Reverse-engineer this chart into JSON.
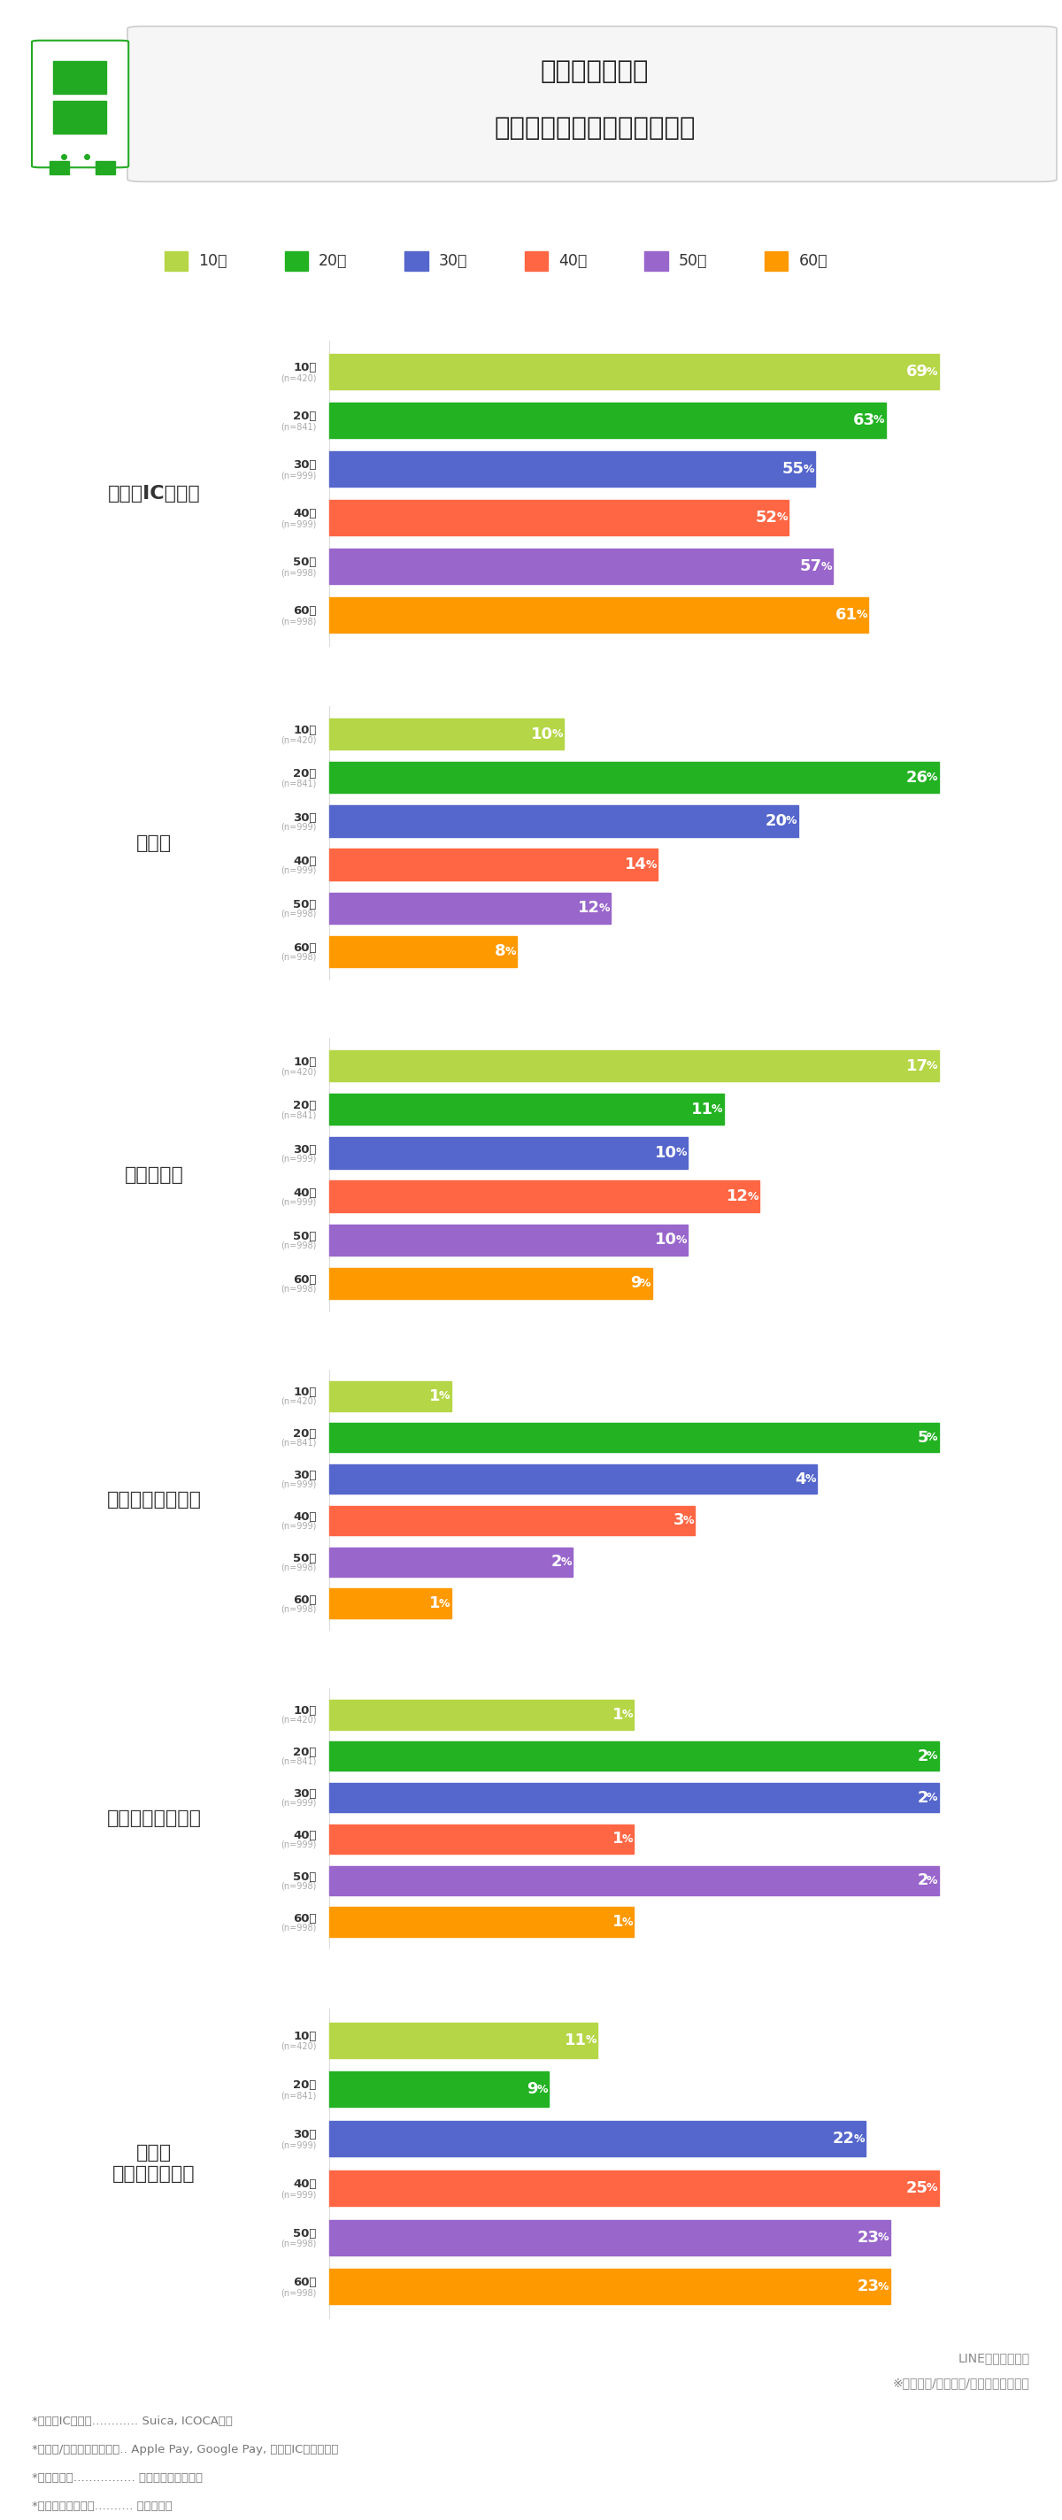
{
  "title_line1": "電車に乗る時、",
  "title_line2": "改札での運賃支払い方法は？",
  "age_labels": [
    "10代",
    "20代",
    "30代",
    "40代",
    "50代",
    "60代"
  ],
  "age_n": [
    "(n=420)",
    "(n=841)",
    "(n=999)",
    "(n=999)",
    "(n=998)",
    "(n=998)"
  ],
  "colors": [
    "#b5d646",
    "#22b222",
    "#5566cc",
    "#ff6644",
    "#9966cc",
    "#ff9900"
  ],
  "categories": [
    {
      "name": "交通系ICカード",
      "values": [
        69,
        63,
        55,
        52,
        57,
        61
      ],
      "bg": "#ddeef8",
      "shaded": true
    },
    {
      "name": "スマホ",
      "values": [
        10,
        26,
        20,
        14,
        12,
        8
      ],
      "bg": "#ffffff",
      "shaded": false
    },
    {
      "name": "磁気乗車券",
      "values": [
        17,
        11,
        10,
        12,
        10,
        9
      ],
      "bg": "#ddeef8",
      "shaded": true
    },
    {
      "name": "スマートウォッチ",
      "values": [
        1,
        5,
        4,
        3,
        2,
        1
      ],
      "bg": "#ffffff",
      "shaded": false
    },
    {
      "name": "クレジットカード",
      "values": [
        1,
        2,
        2,
        1,
        2,
        1
      ],
      "bg": "#ddeef8",
      "shaded": true
    },
    {
      "name": "ふだん\n電車に乗らない",
      "values": [
        11,
        9,
        22,
        25,
        23,
        23
      ],
      "bg": "#ffffff",
      "shaded": false
    }
  ],
  "footer_line1": "LINEリサーチ調べ",
  "footer_line2": "※複数回答/全体降順/「その他」を除く",
  "footnotes": [
    "*交通系ICカード‥‥‥‥‥‥ Suica, ICOCAなど",
    "*スマホ/スマートウォッチ‥ Apple Pay, Google Pay, 交通系ICアプリなど",
    "*磁気乗車券‥‥‥‥‥‥‥‥ 紙のきっぷ・回数券",
    "*クレジットカード‥‥‥‥‥ タッチ決済"
  ]
}
